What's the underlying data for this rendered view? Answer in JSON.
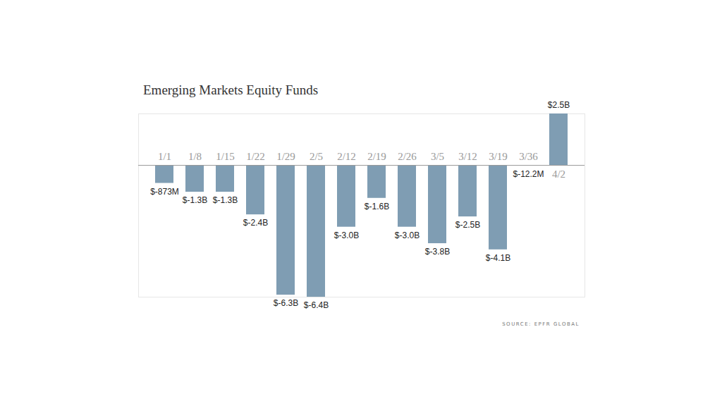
{
  "chart_data": {
    "type": "bar",
    "title": "Emerging Markets Equity Funds",
    "source": "SOURCE: EPFR GLOBAL",
    "categories": [
      "1/1",
      "1/8",
      "1/15",
      "1/22",
      "1/29",
      "2/5",
      "2/12",
      "2/19",
      "2/26",
      "3/5",
      "3/12",
      "3/19",
      "3/36",
      "4/2"
    ],
    "values": [
      -0.873,
      -1.3,
      -1.3,
      -2.4,
      -6.3,
      -6.4,
      -3.0,
      -1.6,
      -3.0,
      -3.8,
      -2.5,
      -4.1,
      -0.0122,
      2.5
    ],
    "value_labels": [
      "$-873M",
      "$-1.3B",
      "$-1.3B",
      "$-2.4B",
      "$-6.3B",
      "$-6.4B",
      "$-3.0B",
      "$-1.6B",
      "$-3.0B",
      "$-3.8B",
      "$-2.5B",
      "$-4.1B",
      "$-12.2M",
      "$2.5B"
    ],
    "color": "#7f9db3",
    "ylim": [
      -6.4,
      2.5
    ],
    "grid": false,
    "data_labels": true,
    "tick_labels": false
  }
}
